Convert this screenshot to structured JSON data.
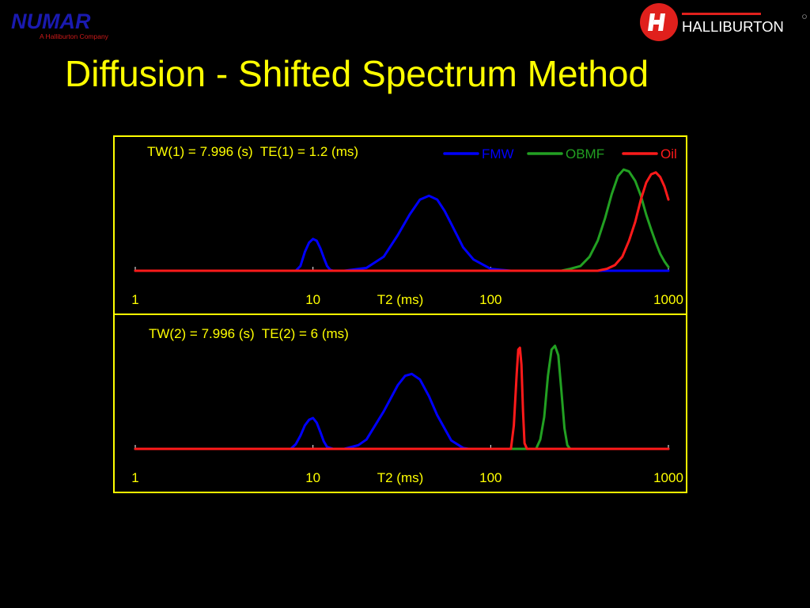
{
  "slide": {
    "title": "Diffusion - Shifted Spectrum Method"
  },
  "logos": {
    "numar": {
      "name": "NUMAR",
      "tagline": "A Halliburton Company",
      "color": "#1a1ab0",
      "tagline_color": "#cc1a1a"
    },
    "halliburton": {
      "name": "HALLIBURTON",
      "color": "#e0201c"
    }
  },
  "colors": {
    "title": "#ffff00",
    "frame": "#ffff00",
    "axis_text": "#ffff00",
    "annotation": "#ffff00"
  },
  "legend": {
    "placement": "top-right",
    "items": [
      {
        "label": "FMW",
        "color": "#0000ff"
      },
      {
        "label": "OBMF",
        "color": "#22a022"
      },
      {
        "label": "Oil",
        "color": "#ff1a1a"
      }
    ]
  },
  "chart_data": [
    {
      "type": "line",
      "annotation": "TW(1) = 7.996 (s)  TE(1) = 1.2 (ms)",
      "xlabel": "T2 (ms)",
      "ylabel": "",
      "xscale": "log",
      "xlim": [
        1,
        1000
      ],
      "ylim": [
        0,
        1.2
      ],
      "grid": false,
      "xtick_labels": [
        {
          "value": 1,
          "label": "1"
        },
        {
          "value": 10,
          "label": "10"
        },
        {
          "value": 100,
          "label": "100"
        },
        {
          "value": 1000,
          "label": "1000"
        }
      ],
      "series": [
        {
          "name": "FMW",
          "color": "#0000ff",
          "x": [
            1,
            8,
            8.5,
            9,
            9.5,
            10,
            10.5,
            11,
            11.5,
            12,
            12.5,
            13,
            15,
            20,
            25,
            30,
            35,
            40,
            45,
            50,
            55,
            60,
            70,
            80,
            100,
            130,
            1000
          ],
          "y": [
            0,
            0,
            0.05,
            0.2,
            0.3,
            0.34,
            0.32,
            0.24,
            0.14,
            0.05,
            0.01,
            0,
            0,
            0.03,
            0.15,
            0.38,
            0.6,
            0.76,
            0.8,
            0.76,
            0.64,
            0.5,
            0.25,
            0.12,
            0.02,
            0,
            0
          ]
        },
        {
          "name": "OBMF",
          "color": "#22a022",
          "x": [
            1,
            250,
            280,
            320,
            360,
            400,
            440,
            480,
            520,
            560,
            600,
            650,
            700,
            750,
            800,
            850,
            900,
            950,
            1000
          ],
          "y": [
            0,
            0,
            0.02,
            0.05,
            0.15,
            0.32,
            0.56,
            0.82,
            1.01,
            1.08,
            1.06,
            0.96,
            0.8,
            0.6,
            0.44,
            0.3,
            0.18,
            0.1,
            0.04
          ]
        },
        {
          "name": "Oil",
          "color": "#ff1a1a",
          "x": [
            1,
            400,
            450,
            500,
            550,
            600,
            650,
            700,
            750,
            800,
            850,
            900,
            950,
            1000
          ],
          "y": [
            0,
            0,
            0.02,
            0.06,
            0.15,
            0.32,
            0.52,
            0.76,
            0.94,
            1.03,
            1.05,
            1.0,
            0.9,
            0.76
          ]
        }
      ]
    },
    {
      "type": "line",
      "annotation": "TW(2) = 7.996 (s)  TE(2) = 6 (ms)",
      "xlabel": "T2 (ms)",
      "ylabel": "",
      "xscale": "log",
      "xlim": [
        1,
        1000
      ],
      "ylim": [
        0,
        1.2
      ],
      "grid": false,
      "xtick_labels": [
        {
          "value": 1,
          "label": "1"
        },
        {
          "value": 10,
          "label": "10"
        },
        {
          "value": 100,
          "label": "100"
        },
        {
          "value": 1000,
          "label": "1000"
        }
      ],
      "series": [
        {
          "name": "FMW",
          "color": "#0000ff",
          "x": [
            1,
            7.5,
            8,
            8.5,
            9,
            9.5,
            10,
            10.5,
            11,
            11.5,
            12,
            13,
            15,
            18,
            20,
            25,
            30,
            33,
            36,
            40,
            45,
            50,
            60,
            70,
            75,
            1000
          ],
          "y": [
            0,
            0,
            0.05,
            0.14,
            0.25,
            0.31,
            0.33,
            0.28,
            0.18,
            0.08,
            0.02,
            0,
            0,
            0.04,
            0.1,
            0.4,
            0.68,
            0.78,
            0.8,
            0.74,
            0.56,
            0.36,
            0.09,
            0.01,
            0,
            0
          ]
        },
        {
          "name": "OBMF",
          "color": "#22a022",
          "x": [
            1,
            180,
            190,
            200,
            210,
            220,
            230,
            240,
            250,
            260,
            270,
            280,
            300,
            1000
          ],
          "y": [
            0,
            0,
            0.1,
            0.34,
            0.78,
            1.06,
            1.1,
            1.0,
            0.62,
            0.22,
            0.04,
            0,
            0,
            0
          ]
        },
        {
          "name": "Oil",
          "color": "#ff1a1a",
          "x": [
            1,
            130,
            135,
            140,
            143,
            146,
            149,
            152,
            155,
            160,
            1000
          ],
          "y": [
            0,
            0,
            0.25,
            0.8,
            1.06,
            1.08,
            0.9,
            0.4,
            0.06,
            0,
            0
          ]
        }
      ]
    }
  ]
}
